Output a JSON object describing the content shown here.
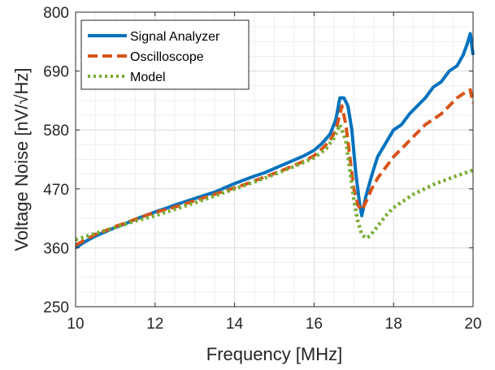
{
  "chart_data": {
    "type": "line",
    "xlabel": "Frequency [MHz]",
    "ylabel": "Voltage Noise [nV/√Hz]",
    "xlim": [
      10,
      20
    ],
    "ylim": [
      250,
      800
    ],
    "xticks": [
      10,
      12,
      14,
      16,
      18,
      20
    ],
    "xtick_labels": [
      "10",
      "12",
      "14",
      "16",
      "18",
      "20"
    ],
    "yticks": [
      250,
      360,
      470,
      580,
      690,
      800
    ],
    "ytick_labels": [
      "250",
      "360",
      "470",
      "580",
      "690",
      "800"
    ],
    "grid": true,
    "legend_position": "top-left",
    "series": [
      {
        "name": "Signal Analyzer",
        "color": "#0072BD",
        "style": "solid",
        "x": [
          10,
          10.25,
          10.5,
          10.75,
          11,
          11.25,
          11.5,
          11.75,
          12,
          12.25,
          12.5,
          12.75,
          13,
          13.25,
          13.5,
          13.75,
          14,
          14.25,
          14.5,
          14.75,
          15,
          15.25,
          15.5,
          15.75,
          16,
          16.2,
          16.4,
          16.55,
          16.65,
          16.75,
          16.85,
          16.95,
          17.05,
          17.15,
          17.2,
          17.3,
          17.45,
          17.6,
          17.8,
          18,
          18.2,
          18.4,
          18.6,
          18.8,
          19,
          19.2,
          19.4,
          19.6,
          19.75,
          19.85,
          19.93,
          20
        ],
        "y": [
          360,
          372,
          382,
          390,
          398,
          405,
          413,
          420,
          427,
          433,
          440,
          446,
          452,
          458,
          464,
          472,
          480,
          487,
          494,
          500,
          508,
          516,
          524,
          532,
          542,
          555,
          572,
          600,
          640,
          640,
          625,
          580,
          500,
          440,
          420,
          455,
          495,
          530,
          555,
          580,
          590,
          610,
          625,
          640,
          660,
          670,
          690,
          700,
          720,
          740,
          760,
          720
        ]
      },
      {
        "name": "Oscilloscope",
        "color": "#D95319",
        "style": "dashed",
        "x": [
          10,
          10.25,
          10.5,
          10.75,
          11,
          11.25,
          11.5,
          11.75,
          12,
          12.25,
          12.5,
          12.75,
          13,
          13.25,
          13.5,
          13.75,
          14,
          14.25,
          14.5,
          14.75,
          15,
          15.25,
          15.5,
          15.75,
          16,
          16.2,
          16.4,
          16.55,
          16.7,
          16.8,
          16.9,
          17,
          17.1,
          17.2,
          17.3,
          17.45,
          17.6,
          17.8,
          18,
          18.2,
          18.4,
          18.6,
          18.8,
          19,
          19.2,
          19.4,
          19.6,
          19.8,
          19.93,
          20
        ],
        "y": [
          365,
          375,
          385,
          392,
          400,
          406,
          413,
          420,
          426,
          431,
          436,
          442,
          448,
          454,
          460,
          466,
          472,
          478,
          485,
          492,
          499,
          506,
          514,
          522,
          532,
          545,
          560,
          580,
          625,
          590,
          530,
          470,
          440,
          430,
          445,
          470,
          490,
          510,
          530,
          545,
          560,
          575,
          590,
          600,
          610,
          625,
          640,
          650,
          655,
          630
        ]
      },
      {
        "name": "Model",
        "color": "#77AC30",
        "style": "dotted",
        "x": [
          10,
          10.5,
          11,
          11.5,
          12,
          12.5,
          13,
          13.5,
          14,
          14.5,
          15,
          15.5,
          16,
          16.3,
          16.5,
          16.65,
          16.8,
          16.9,
          17,
          17.1,
          17.2,
          17.3,
          17.4,
          17.6,
          17.8,
          18,
          18.5,
          19,
          19.5,
          20
        ],
        "y": [
          375,
          387,
          398,
          410,
          420,
          432,
          444,
          457,
          470,
          483,
          497,
          512,
          528,
          545,
          565,
          590,
          560,
          505,
          450,
          410,
          385,
          378,
          382,
          400,
          420,
          435,
          460,
          478,
          492,
          505
        ]
      }
    ]
  }
}
